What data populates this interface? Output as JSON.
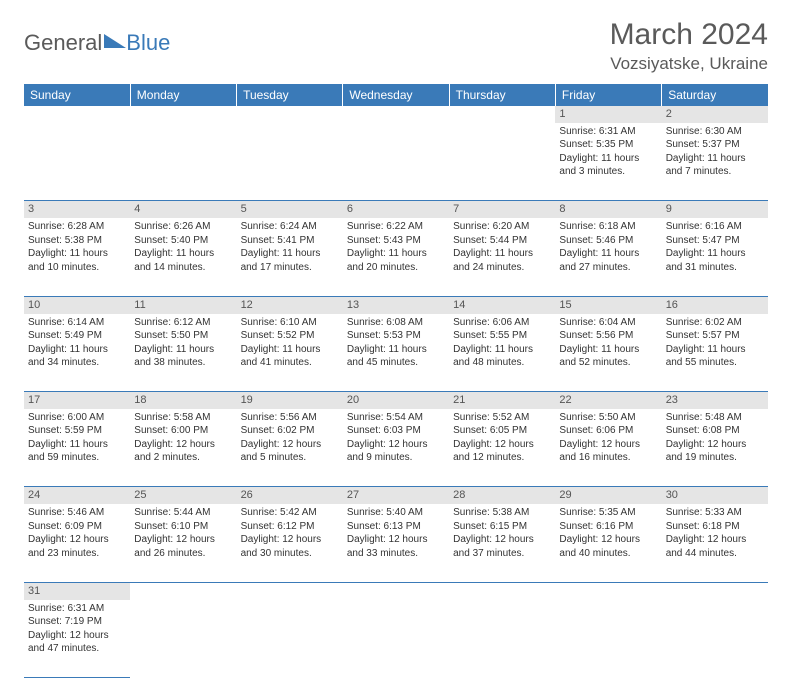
{
  "logo": {
    "general": "General",
    "blue": "Blue"
  },
  "title": {
    "month_year": "March 2024",
    "location": "Vozsiyatske, Ukraine"
  },
  "colors": {
    "header_bg": "#3a7ab8",
    "daynum_bg": "#e5e5e5",
    "text": "#333333"
  },
  "day_headers": [
    "Sunday",
    "Monday",
    "Tuesday",
    "Wednesday",
    "Thursday",
    "Friday",
    "Saturday"
  ],
  "weeks": [
    [
      null,
      null,
      null,
      null,
      null,
      {
        "n": "1",
        "sr": "Sunrise: 6:31 AM",
        "ss": "Sunset: 5:35 PM",
        "d1": "Daylight: 11 hours",
        "d2": "and 3 minutes."
      },
      {
        "n": "2",
        "sr": "Sunrise: 6:30 AM",
        "ss": "Sunset: 5:37 PM",
        "d1": "Daylight: 11 hours",
        "d2": "and 7 minutes."
      }
    ],
    [
      {
        "n": "3",
        "sr": "Sunrise: 6:28 AM",
        "ss": "Sunset: 5:38 PM",
        "d1": "Daylight: 11 hours",
        "d2": "and 10 minutes."
      },
      {
        "n": "4",
        "sr": "Sunrise: 6:26 AM",
        "ss": "Sunset: 5:40 PM",
        "d1": "Daylight: 11 hours",
        "d2": "and 14 minutes."
      },
      {
        "n": "5",
        "sr": "Sunrise: 6:24 AM",
        "ss": "Sunset: 5:41 PM",
        "d1": "Daylight: 11 hours",
        "d2": "and 17 minutes."
      },
      {
        "n": "6",
        "sr": "Sunrise: 6:22 AM",
        "ss": "Sunset: 5:43 PM",
        "d1": "Daylight: 11 hours",
        "d2": "and 20 minutes."
      },
      {
        "n": "7",
        "sr": "Sunrise: 6:20 AM",
        "ss": "Sunset: 5:44 PM",
        "d1": "Daylight: 11 hours",
        "d2": "and 24 minutes."
      },
      {
        "n": "8",
        "sr": "Sunrise: 6:18 AM",
        "ss": "Sunset: 5:46 PM",
        "d1": "Daylight: 11 hours",
        "d2": "and 27 minutes."
      },
      {
        "n": "9",
        "sr": "Sunrise: 6:16 AM",
        "ss": "Sunset: 5:47 PM",
        "d1": "Daylight: 11 hours",
        "d2": "and 31 minutes."
      }
    ],
    [
      {
        "n": "10",
        "sr": "Sunrise: 6:14 AM",
        "ss": "Sunset: 5:49 PM",
        "d1": "Daylight: 11 hours",
        "d2": "and 34 minutes."
      },
      {
        "n": "11",
        "sr": "Sunrise: 6:12 AM",
        "ss": "Sunset: 5:50 PM",
        "d1": "Daylight: 11 hours",
        "d2": "and 38 minutes."
      },
      {
        "n": "12",
        "sr": "Sunrise: 6:10 AM",
        "ss": "Sunset: 5:52 PM",
        "d1": "Daylight: 11 hours",
        "d2": "and 41 minutes."
      },
      {
        "n": "13",
        "sr": "Sunrise: 6:08 AM",
        "ss": "Sunset: 5:53 PM",
        "d1": "Daylight: 11 hours",
        "d2": "and 45 minutes."
      },
      {
        "n": "14",
        "sr": "Sunrise: 6:06 AM",
        "ss": "Sunset: 5:55 PM",
        "d1": "Daylight: 11 hours",
        "d2": "and 48 minutes."
      },
      {
        "n": "15",
        "sr": "Sunrise: 6:04 AM",
        "ss": "Sunset: 5:56 PM",
        "d1": "Daylight: 11 hours",
        "d2": "and 52 minutes."
      },
      {
        "n": "16",
        "sr": "Sunrise: 6:02 AM",
        "ss": "Sunset: 5:57 PM",
        "d1": "Daylight: 11 hours",
        "d2": "and 55 minutes."
      }
    ],
    [
      {
        "n": "17",
        "sr": "Sunrise: 6:00 AM",
        "ss": "Sunset: 5:59 PM",
        "d1": "Daylight: 11 hours",
        "d2": "and 59 minutes."
      },
      {
        "n": "18",
        "sr": "Sunrise: 5:58 AM",
        "ss": "Sunset: 6:00 PM",
        "d1": "Daylight: 12 hours",
        "d2": "and 2 minutes."
      },
      {
        "n": "19",
        "sr": "Sunrise: 5:56 AM",
        "ss": "Sunset: 6:02 PM",
        "d1": "Daylight: 12 hours",
        "d2": "and 5 minutes."
      },
      {
        "n": "20",
        "sr": "Sunrise: 5:54 AM",
        "ss": "Sunset: 6:03 PM",
        "d1": "Daylight: 12 hours",
        "d2": "and 9 minutes."
      },
      {
        "n": "21",
        "sr": "Sunrise: 5:52 AM",
        "ss": "Sunset: 6:05 PM",
        "d1": "Daylight: 12 hours",
        "d2": "and 12 minutes."
      },
      {
        "n": "22",
        "sr": "Sunrise: 5:50 AM",
        "ss": "Sunset: 6:06 PM",
        "d1": "Daylight: 12 hours",
        "d2": "and 16 minutes."
      },
      {
        "n": "23",
        "sr": "Sunrise: 5:48 AM",
        "ss": "Sunset: 6:08 PM",
        "d1": "Daylight: 12 hours",
        "d2": "and 19 minutes."
      }
    ],
    [
      {
        "n": "24",
        "sr": "Sunrise: 5:46 AM",
        "ss": "Sunset: 6:09 PM",
        "d1": "Daylight: 12 hours",
        "d2": "and 23 minutes."
      },
      {
        "n": "25",
        "sr": "Sunrise: 5:44 AM",
        "ss": "Sunset: 6:10 PM",
        "d1": "Daylight: 12 hours",
        "d2": "and 26 minutes."
      },
      {
        "n": "26",
        "sr": "Sunrise: 5:42 AM",
        "ss": "Sunset: 6:12 PM",
        "d1": "Daylight: 12 hours",
        "d2": "and 30 minutes."
      },
      {
        "n": "27",
        "sr": "Sunrise: 5:40 AM",
        "ss": "Sunset: 6:13 PM",
        "d1": "Daylight: 12 hours",
        "d2": "and 33 minutes."
      },
      {
        "n": "28",
        "sr": "Sunrise: 5:38 AM",
        "ss": "Sunset: 6:15 PM",
        "d1": "Daylight: 12 hours",
        "d2": "and 37 minutes."
      },
      {
        "n": "29",
        "sr": "Sunrise: 5:35 AM",
        "ss": "Sunset: 6:16 PM",
        "d1": "Daylight: 12 hours",
        "d2": "and 40 minutes."
      },
      {
        "n": "30",
        "sr": "Sunrise: 5:33 AM",
        "ss": "Sunset: 6:18 PM",
        "d1": "Daylight: 12 hours",
        "d2": "and 44 minutes."
      }
    ],
    [
      {
        "n": "31",
        "sr": "Sunrise: 6:31 AM",
        "ss": "Sunset: 7:19 PM",
        "d1": "Daylight: 12 hours",
        "d2": "and 47 minutes."
      },
      null,
      null,
      null,
      null,
      null,
      null
    ]
  ]
}
